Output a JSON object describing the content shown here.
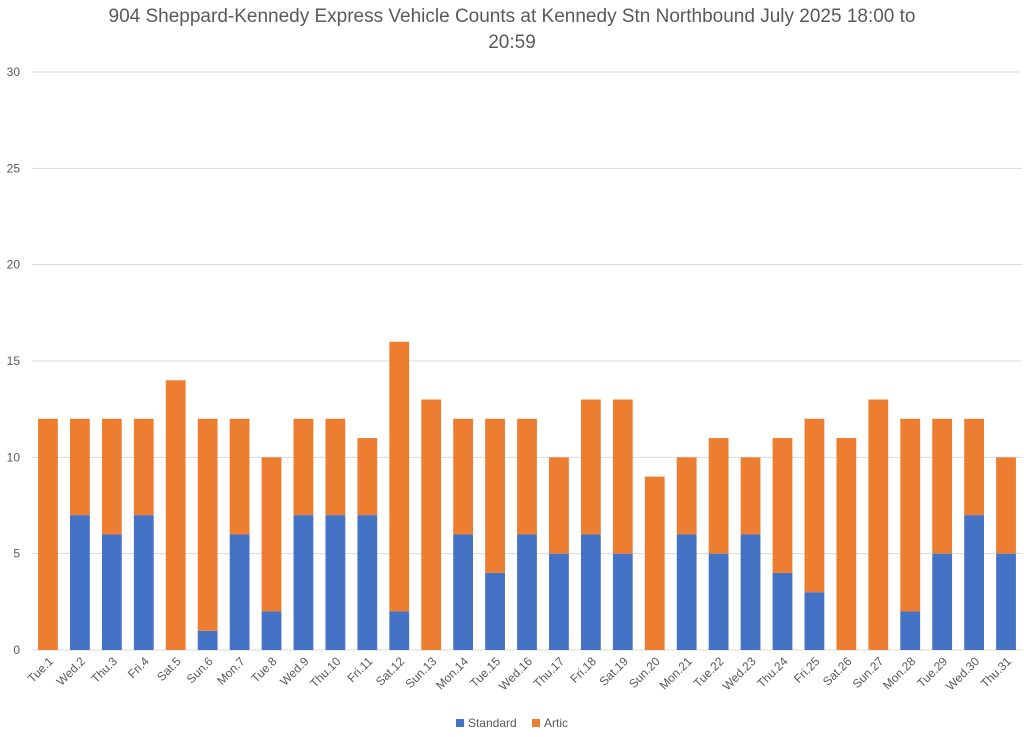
{
  "chart_data": {
    "type": "bar",
    "stacked": true,
    "title": "904 Sheppard-Kennedy Express Vehicle Counts at Kennedy Stn Northbound July 2025  18:00 to",
    "title_line2": "20:59",
    "xlabel": "",
    "ylabel": "",
    "ylim": [
      0,
      30
    ],
    "yticks": [
      0,
      5,
      10,
      15,
      20,
      25,
      30
    ],
    "grid": true,
    "legend_position": "bottom",
    "categories": [
      "Tue.1",
      "Wed.2",
      "Thu.3",
      "Fri.4",
      "Sat.5",
      "Sun.6",
      "Mon.7",
      "Tue.8",
      "Wed.9",
      "Thu.10",
      "Fri.11",
      "Sat.12",
      "Sun.13",
      "Mon.14",
      "Tue.15",
      "Wed.16",
      "Thu.17",
      "Fri.18",
      "Sat.19",
      "Sun.20",
      "Mon.21",
      "Tue.22",
      "Wed.23",
      "Thu.24",
      "Fri.25",
      "Sat.26",
      "Sun.27",
      "Mon.28",
      "Tue.29",
      "Wed.30",
      "Thu.31"
    ],
    "series": [
      {
        "name": "Standard",
        "color": "#4472C4",
        "values": [
          0,
          7,
          6,
          7,
          0,
          1,
          6,
          2,
          7,
          7,
          7,
          2,
          0,
          6,
          4,
          6,
          5,
          6,
          5,
          0,
          6,
          5,
          6,
          4,
          3,
          0,
          0,
          2,
          5,
          7,
          5
        ]
      },
      {
        "name": "Artic",
        "color": "#ED7D31",
        "values": [
          12,
          5,
          6,
          5,
          14,
          11,
          6,
          8,
          5,
          5,
          4,
          14,
          13,
          6,
          8,
          6,
          5,
          7,
          8,
          9,
          4,
          6,
          4,
          7,
          9,
          11,
          13,
          10,
          7,
          5,
          5
        ]
      }
    ]
  }
}
